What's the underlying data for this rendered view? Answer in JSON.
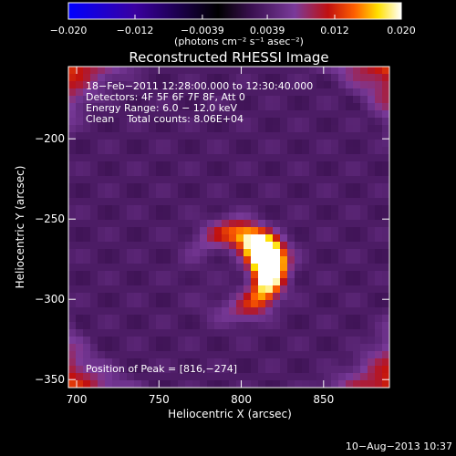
{
  "chart_data": {
    "type": "heatmap",
    "title": "Reconstructed RHESSI Image",
    "xlabel": "Heliocentric X (arcsec)",
    "ylabel": "Heliocentric Y (arcsec)",
    "xlim": [
      695,
      890
    ],
    "ylim": [
      -355,
      -155
    ],
    "x_ticks": [
      {
        "value": 700,
        "label": "700"
      },
      {
        "value": 750,
        "label": "750"
      },
      {
        "value": 800,
        "label": "800"
      },
      {
        "value": 850,
        "label": "850"
      }
    ],
    "y_ticks": [
      {
        "value": -200,
        "label": "−200"
      },
      {
        "value": -250,
        "label": "−250"
      },
      {
        "value": -300,
        "label": "−300"
      },
      {
        "value": -350,
        "label": "−350"
      }
    ],
    "colorbar": {
      "range": [
        -0.02,
        0.02
      ],
      "ticks": [
        {
          "value": -0.02,
          "label": "−0.020"
        },
        {
          "value": -0.012,
          "label": "−0.012"
        },
        {
          "value": -0.0039,
          "label": "−0.0039"
        },
        {
          "value": 0.0039,
          "label": "0.0039"
        },
        {
          "value": 0.012,
          "label": "0.012"
        },
        {
          "value": 0.02,
          "label": "0.020"
        }
      ],
      "label": "(photons cm⁻² s⁻¹ asec⁻²)"
    },
    "annotations": [
      "18−Feb−2011 12:28:00.000 to 12:30:40.000",
      "Detectors: 4F 5F 6F 7F 8F, Att 0",
      "Energy Range: 6.0 − 12.0 keV",
      "Clean    Total counts: 8.06E+04"
    ],
    "peak_annotation": "Position of Peak = [816,−274]",
    "peak": {
      "x": 816,
      "y": -274
    },
    "colors": {
      "background": "#000000",
      "cmap": [
        "#0000ff",
        "#3a00a0",
        "#000000",
        "#3a1050",
        "#7a3a9a",
        "#c01010",
        "#ff6000",
        "#ffe000",
        "#ffffff"
      ]
    }
  },
  "footer": {
    "date": "10−Aug−2013 10:37"
  }
}
